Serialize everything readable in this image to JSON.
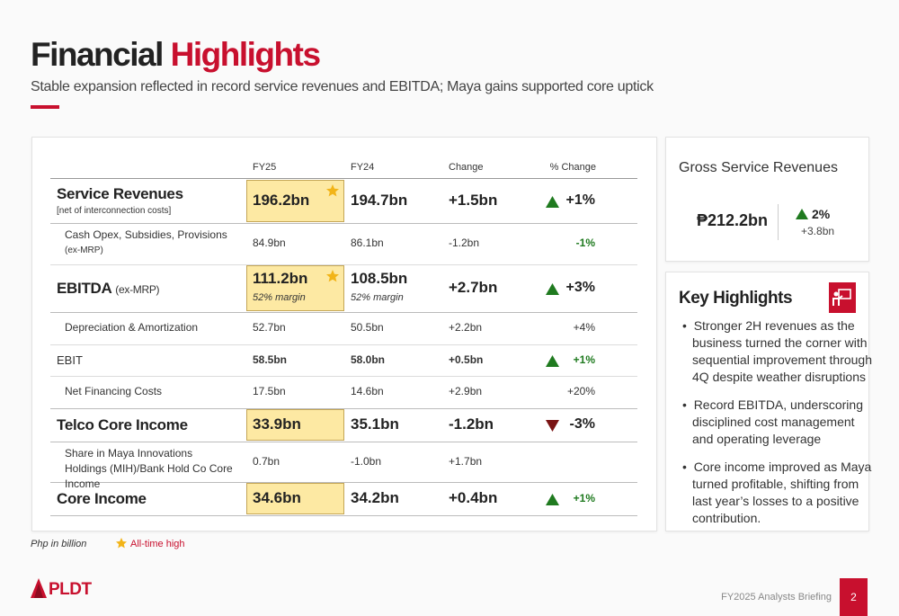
{
  "header": {
    "title_part1": "Financial",
    "title_part2": "Highlights",
    "subtitle": "Stable expansion reflected in record service revenues and EBITDA; Maya gains supported core uptick"
  },
  "table": {
    "columns": [
      "FY25",
      "FY24",
      "Change",
      "% Change"
    ],
    "rows": [
      {
        "label": "Service Revenues",
        "sublabel": "[net of interconnection costs]",
        "fy25": "196.2bn",
        "fy24": "194.7bn",
        "change": "+1.5bn",
        "pct_change": "+1%"
      },
      {
        "label": "Cash Opex, Subsidies, Provisions",
        "sublabel": "(ex-MRP)",
        "fy25": "84.9bn",
        "fy24": "86.1bn",
        "change": "-1.2bn",
        "pct_change": "-1%"
      },
      {
        "label": "EBITDA",
        "label_note": "(ex-MRP)",
        "fy25": "111.2bn",
        "fy25_note": "52% margin",
        "fy24": "108.5bn",
        "fy24_note": "52% margin",
        "change": "+2.7bn",
        "pct_change": "+3%"
      },
      {
        "label": "Depreciation & Amortization",
        "fy25": "52.7bn",
        "fy24": "50.5bn",
        "change": "+2.2bn",
        "pct_change": "+4%"
      },
      {
        "label": "EBIT",
        "fy25": "58.5bn",
        "fy24": "58.0bn",
        "change": "+0.5bn",
        "pct_change": "+1%"
      },
      {
        "label": "Net Financing Costs",
        "fy25": "17.5bn",
        "fy24": "14.6bn",
        "change": "+2.9bn",
        "pct_change": "+20%"
      },
      {
        "label": "Telco Core Income",
        "fy25": "33.9bn",
        "fy24": "35.1bn",
        "change": "-1.2bn",
        "pct_change": "-3%"
      },
      {
        "label": "Share in Maya Innovations Holdings (MIH)/Bank Hold Co Core Income",
        "fy25": "0.7bn",
        "fy24": "-1.0bn",
        "change": "+1.7bn"
      },
      {
        "label": "Core Income",
        "fy25": "34.6bn",
        "fy24": "34.2bn",
        "change": "+0.4bn",
        "pct_change": "+1%"
      }
    ]
  },
  "gross_service_revenues": {
    "title": "Gross Service Revenues",
    "value": "₱212.2bn",
    "pct_change": "2%",
    "change": "+3.8bn"
  },
  "key_highlights": {
    "title": "Key Highlights",
    "bullets": [
      "Stronger 2H revenues as the business turned the corner with sequential improvement through 4Q despite weather disruptions",
      "Record EBITDA, underscoring disciplined cost management and operating leverage",
      "Core income improved as Maya turned profitable, shifting from last year’s losses to a positive contribution."
    ]
  },
  "footnotes": {
    "unit": "Php in billion",
    "star_legend": "All-time high"
  },
  "footer": {
    "logo_text": "PLDT",
    "event": "FY2025 Analysts Briefing",
    "page": "2"
  }
}
